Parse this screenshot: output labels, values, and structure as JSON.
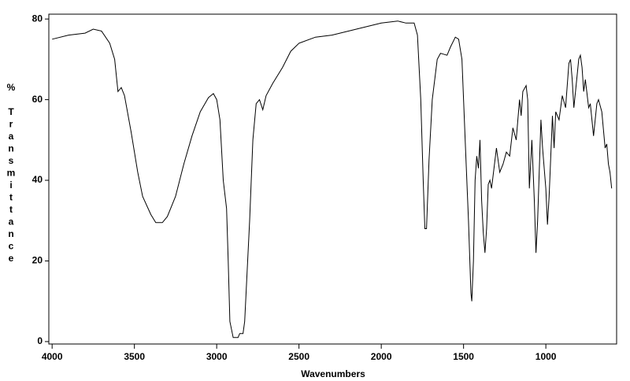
{
  "chart_data": {
    "type": "line",
    "x_label": "Wavenumbers",
    "y_label": "% Transmittance",
    "xlim": [
      4020,
      570
    ],
    "ylim": [
      -0.6,
      81.2
    ],
    "xticks": [
      4000,
      3500,
      3000,
      2500,
      2000,
      1500,
      1000
    ],
    "yticks": [
      0,
      20,
      40,
      60,
      80
    ],
    "grid": false,
    "series": [
      {
        "color": "#000000",
        "x": [
          4000,
          3900,
          3800,
          3750,
          3700,
          3650,
          3620,
          3600,
          3580,
          3560,
          3520,
          3480,
          3450,
          3400,
          3370,
          3330,
          3300,
          3250,
          3200,
          3150,
          3100,
          3050,
          3020,
          3000,
          2980,
          2960,
          2940,
          2930,
          2920,
          2900,
          2870,
          2860,
          2840,
          2830,
          2800,
          2780,
          2760,
          2740,
          2720,
          2700,
          2660,
          2600,
          2550,
          2500,
          2400,
          2300,
          2200,
          2100,
          2000,
          1900,
          1850,
          1800,
          1780,
          1760,
          1745,
          1735,
          1725,
          1710,
          1690,
          1660,
          1640,
          1600,
          1580,
          1550,
          1530,
          1510,
          1490,
          1470,
          1455,
          1450,
          1440,
          1430,
          1420,
          1410,
          1400,
          1390,
          1380,
          1370,
          1360,
          1350,
          1340,
          1330,
          1300,
          1280,
          1260,
          1240,
          1220,
          1200,
          1180,
          1160,
          1150,
          1140,
          1120,
          1110,
          1100,
          1085,
          1070,
          1060,
          1050,
          1030,
          1020,
          1000,
          990,
          980,
          960,
          950,
          940,
          920,
          900,
          880,
          860,
          850,
          840,
          830,
          820,
          800,
          790,
          780,
          770,
          760,
          740,
          730,
          710,
          700,
          690,
          680,
          660,
          640,
          630,
          620,
          610,
          600
        ],
        "values": [
          75,
          76,
          76.5,
          77.5,
          77,
          74,
          70,
          62,
          63,
          61,
          52,
          42,
          36,
          31.5,
          29.5,
          29.5,
          31,
          36,
          44,
          51,
          57,
          60.5,
          61.5,
          60,
          55,
          40,
          33,
          20,
          5,
          1,
          1,
          2,
          2,
          5,
          30,
          50,
          59,
          60,
          57.5,
          61,
          64,
          68,
          72,
          74,
          75.5,
          76,
          77,
          78,
          79,
          79.5,
          79,
          79,
          76,
          60,
          40,
          28,
          28,
          45,
          60,
          70,
          71.5,
          71,
          73,
          75.5,
          75,
          70,
          50,
          30,
          12,
          10,
          20,
          40,
          46,
          43,
          50,
          35,
          27,
          22,
          28,
          39,
          40,
          38,
          48,
          42,
          44,
          47,
          46,
          53,
          50,
          60,
          56,
          62,
          63.5,
          60,
          38,
          50,
          35,
          22,
          30,
          55,
          48,
          38,
          29,
          36,
          56,
          48,
          57,
          55,
          61,
          58,
          69,
          70,
          65,
          58,
          62,
          70,
          71,
          68,
          62,
          65,
          58,
          59,
          51,
          55,
          59,
          60,
          57,
          48,
          49,
          44,
          42,
          38
        ]
      }
    ]
  }
}
